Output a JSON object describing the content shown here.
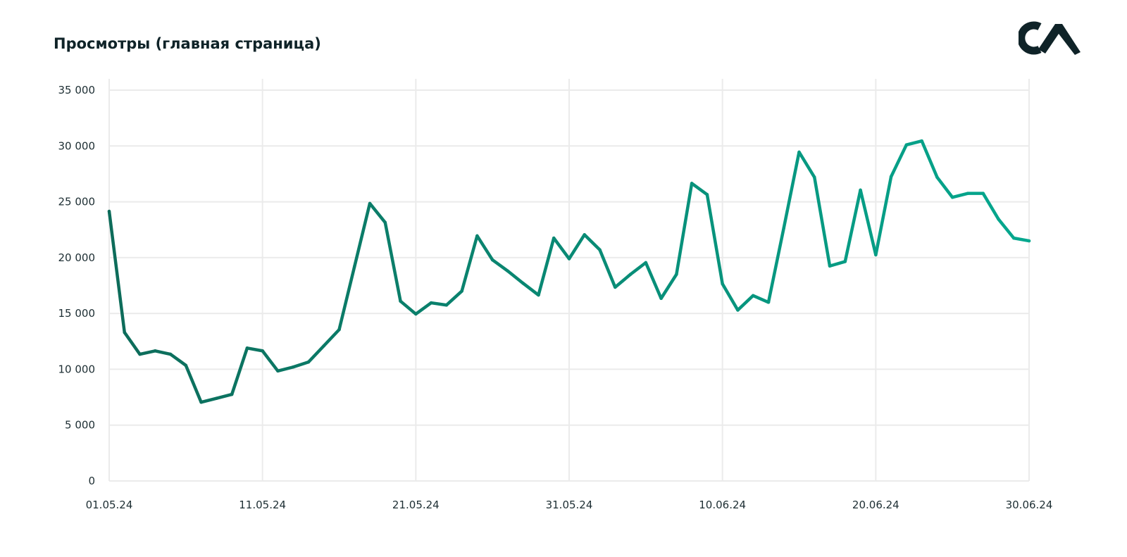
{
  "header": {
    "title": "Просмотры (главная страница)",
    "logo_text": "CA"
  },
  "colors": {
    "line_start": "#0d6b5a",
    "line_end": "#05a88e",
    "grid": "#ebebeb",
    "text": "#13262b",
    "logo": "#0f2328"
  },
  "chart_data": {
    "type": "line",
    "title": "Просмотры (главная страница)",
    "xlabel": "",
    "ylabel": "",
    "ylim": [
      0,
      35000
    ],
    "grid": true,
    "legend": "none",
    "y_ticks": [
      0,
      5000,
      10000,
      15000,
      20000,
      25000,
      30000,
      35000
    ],
    "y_tick_labels": [
      "0",
      "5 000",
      "10 000",
      "15 000",
      "20 000",
      "25 000",
      "30 000",
      "35 000"
    ],
    "x_tick_labels": [
      "01.05.24",
      "11.05.24",
      "21.05.24",
      "31.05.24",
      "10.06.24",
      "20.06.24",
      "30.06.24"
    ],
    "x": [
      "01.05.24",
      "02.05.24",
      "03.05.24",
      "04.05.24",
      "05.05.24",
      "06.05.24",
      "07.05.24",
      "08.05.24",
      "09.05.24",
      "10.05.24",
      "11.05.24",
      "12.05.24",
      "13.05.24",
      "14.05.24",
      "15.05.24",
      "16.05.24",
      "17.05.24",
      "18.05.24",
      "19.05.24",
      "20.05.24",
      "21.05.24",
      "22.05.24",
      "23.05.24",
      "24.05.24",
      "25.05.24",
      "26.05.24",
      "27.05.24",
      "28.05.24",
      "29.05.24",
      "30.05.24",
      "31.05.24",
      "01.06.24",
      "02.06.24",
      "03.06.24",
      "04.06.24",
      "05.06.24",
      "06.06.24",
      "07.06.24",
      "08.06.24",
      "09.06.24",
      "10.06.24",
      "11.06.24",
      "12.06.24",
      "13.06.24",
      "14.06.24",
      "15.06.24",
      "16.06.24",
      "17.06.24",
      "18.06.24",
      "19.06.24",
      "20.06.24",
      "21.06.24",
      "22.06.24",
      "23.06.24",
      "24.06.24",
      "25.06.24",
      "26.06.24",
      "27.06.24",
      "28.06.24",
      "29.06.24",
      "30.06.24"
    ],
    "values": [
      24150,
      13300,
      11350,
      11650,
      11350,
      10350,
      7050,
      7400,
      7750,
      11900,
      11650,
      9850,
      10200,
      10650,
      12100,
      13550,
      19200,
      24850,
      23150,
      16100,
      14950,
      15950,
      15750,
      17000,
      21950,
      19800,
      18800,
      17700,
      16650,
      21750,
      19900,
      22050,
      20700,
      17350,
      18500,
      19550,
      16350,
      18500,
      26650,
      25650,
      17650,
      15300,
      16600,
      16000,
      22650,
      29450,
      27200,
      19250,
      19650,
      26050,
      20250,
      27250,
      30100,
      30450,
      27200,
      25400,
      25750,
      25750,
      23450,
      21750,
      21500
    ]
  }
}
